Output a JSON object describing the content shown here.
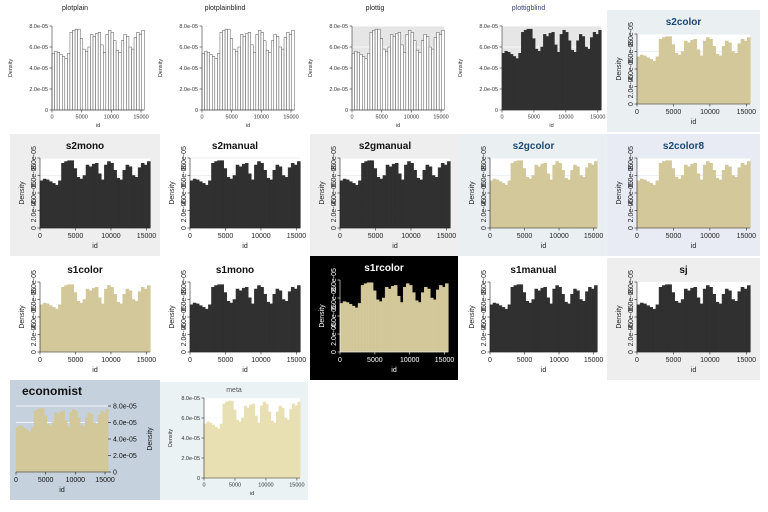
{
  "figure": {
    "panel_titles": [
      "plotplain",
      "plotplainblind",
      "plottig",
      "plottigblind",
      "s2color",
      "s2mono",
      "s2manual",
      "s2gmanual",
      "s2gcolor",
      "s2color8",
      "s1color",
      "s1mono",
      "s1rcolor",
      "s1manual",
      "sj",
      "economist",
      "meta"
    ]
  },
  "chart_data": {
    "type": "bar",
    "description_role": "Density histogram of id repeated once per Stata graph scheme",
    "xlabel": "id",
    "ylabel": "Density",
    "xlim": [
      0,
      15500
    ],
    "ylim": [
      0,
      8e-05
    ],
    "xticks": [
      0,
      5000,
      10000,
      15000
    ],
    "xtick_labels": [
      "0",
      "5000",
      "10000",
      "15000"
    ],
    "yticks": [
      0,
      2e-05,
      4e-05,
      6e-05,
      8e-05
    ],
    "ytick_labels": [
      "0",
      "2.0e-05",
      "4.0e-05",
      "6.0e-05",
      "8.0e-05"
    ],
    "bin_width": 432,
    "bin_start": 0,
    "values": [
      5.4e-05,
      5.6e-05,
      5.5e-05,
      5.3e-05,
      5.1e-05,
      4.9e-05,
      5.4e-05,
      7.4e-05,
      7.6e-05,
      7.7e-05,
      7.7e-05,
      6.8e-05,
      5.8e-05,
      5.6e-05,
      6e-05,
      7.2e-05,
      7e-05,
      7.3e-05,
      7.4e-05,
      6.2e-05,
      5.5e-05,
      7.2e-05,
      7.6e-05,
      7.4e-05,
      6.6e-05,
      5.7e-05,
      5.5e-05,
      6.6e-05,
      7.2e-05,
      7e-05,
      6e-05,
      5.8e-05,
      6.9e-05,
      7.4e-05,
      7.2e-05,
      7.6e-05
    ],
    "grid": "horizontal, scheme-dependent",
    "legend": "none"
  },
  "style": {
    "gold": "#d3c89a",
    "dark": "#303030",
    "s2_background": "#eaf0f2",
    "s2color8_background": "#e8eaf4",
    "economist_background": "#c5d2de",
    "s1rcolor_background": "#000000",
    "meta_background": "#eaf2f4"
  }
}
